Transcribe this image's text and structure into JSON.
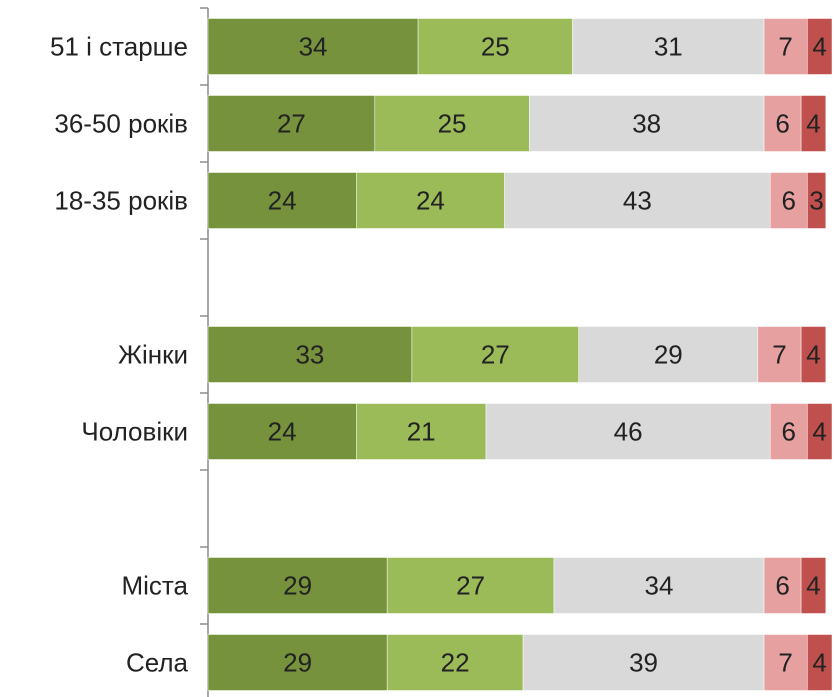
{
  "chart_data": {
    "type": "stacked-bar-horizontal",
    "categories": [
      "51 і старше",
      "36-50 років",
      "18-35 років",
      null,
      "Жінки",
      "Чоловіки",
      null,
      "Міста",
      "Села"
    ],
    "series": [
      {
        "color": "#76923c",
        "values": [
          34,
          27,
          24,
          null,
          33,
          24,
          null,
          29,
          29
        ]
      },
      {
        "color": "#9bbb59",
        "values": [
          25,
          25,
          24,
          null,
          27,
          21,
          null,
          27,
          22
        ]
      },
      {
        "color": "#d9d9d9",
        "values": [
          31,
          38,
          43,
          null,
          29,
          46,
          null,
          34,
          39
        ]
      },
      {
        "color": "#e6a0a0",
        "values": [
          7,
          6,
          6,
          null,
          7,
          6,
          null,
          6,
          7
        ]
      },
      {
        "color": "#c0504d",
        "values": [
          4,
          4,
          3,
          null,
          4,
          4,
          null,
          4,
          4
        ]
      }
    ],
    "xlim": [
      0,
      101
    ]
  }
}
